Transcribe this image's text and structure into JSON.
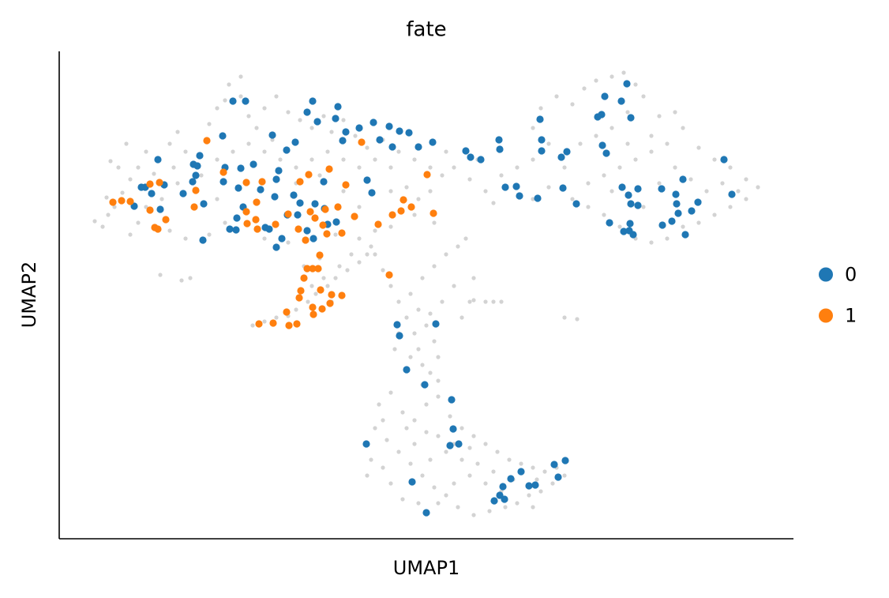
{
  "chart_data": {
    "type": "scatter",
    "title": "fate",
    "x_label": "UMAP1",
    "y_label": "UMAP2",
    "xlim": [
      0,
      930
    ],
    "ylim": [
      0,
      617
    ],
    "grid": false,
    "legend": "right",
    "series": [
      {
        "color": "#d3d3d3",
        "x": [
          45,
          55,
          62,
          70,
          60,
          80,
          75,
          65,
          90,
          100,
          110,
          120,
          140,
          150,
          160,
          190,
          200,
          215,
          230,
          240,
          250,
          260,
          275,
          290,
          305,
          320,
          335,
          345,
          360,
          375,
          390,
          410,
          430,
          450,
          470,
          485,
          470,
          455,
          440,
          420,
          400,
          380,
          360,
          340,
          320,
          300,
          280,
          260,
          240,
          220,
          200,
          180,
          150,
          130,
          100,
          90,
          140,
          160,
          190,
          210,
          260,
          290,
          350,
          380,
          400,
          420,
          450,
          475,
          145,
          200,
          300,
          360,
          420,
          490,
          230,
          210,
          270,
          330,
          380,
          110,
          85,
          500,
          520,
          540,
          560,
          580,
          600,
          620,
          600,
          610,
          630,
          650,
          665,
          680,
          700,
          715,
          730,
          740,
          720,
          700,
          680,
          660,
          640,
          620,
          600,
          650,
          670,
          690,
          710,
          730,
          750,
          770,
          790,
          810,
          830,
          850,
          870,
          885,
          870,
          850,
          830,
          810,
          790,
          770,
          750,
          730,
          710,
          690,
          670,
          700,
          740,
          760,
          780,
          800,
          820,
          840,
          860,
          750,
          720,
          760,
          780,
          550,
          530,
          245,
          260,
          275,
          290,
          300,
          315,
          325,
          340,
          350,
          365,
          380,
          390,
          395,
          370,
          355,
          335,
          320,
          310,
          330,
          345,
          400,
          410,
          420,
          430,
          440,
          450,
          455,
          460,
          470,
          480,
          475,
          465,
          455,
          445,
          460,
          475,
          490,
          505,
          515,
          500,
          485,
          470,
          430,
          425,
          445,
          480,
          460,
          520,
          510,
          540,
          560,
          525,
          405,
          420,
          435,
          450,
          465,
          480,
          495,
          510,
          525,
          540,
          555,
          570,
          585,
          600,
          615,
          630,
          640,
          625,
          610,
          595,
          580,
          565,
          545,
          525,
          505,
          490,
          475,
          460,
          445,
          430,
          415,
          400,
          390,
          395,
          410,
          420,
          435,
          455,
          480,
          500,
          520,
          540,
          560,
          470,
          490,
          510,
          530,
          550,
          450,
          465,
          480,
          500,
          520,
          440,
          410,
          390,
          575,
          605,
          600,
          640,
          656,
          550,
          525,
          128,
          166,
          155
        ],
        "values": [
          402,
          395,
          410,
          420,
          432,
          438,
          470,
          478,
          455,
          470,
          490,
          462,
          500,
          515,
          490,
          525,
          545,
          575,
          560,
          535,
          520,
          545,
          560,
          540,
          530,
          520,
          535,
          515,
          530,
          510,
          495,
          505,
          490,
          480,
          470,
          460,
          440,
          430,
          445,
          470,
          480,
          470,
          480,
          490,
          480,
          470,
          480,
          490,
          500,
          490,
          480,
          460,
          450,
          430,
          400,
          385,
          390,
          380,
          385,
          400,
          380,
          375,
          385,
          380,
          390,
          395,
          410,
          400,
          470,
          430,
          450,
          440,
          440,
          490,
          585,
          555,
          505,
          460,
          420,
          420,
          500,
          470,
          455,
          440,
          460,
          470,
          480,
          500,
          520,
          545,
          560,
          550,
          570,
          580,
          585,
          590,
          575,
          560,
          540,
          520,
          510,
          500,
          470,
          445,
          430,
          430,
          450,
          460,
          470,
          480,
          490,
          500,
          520,
          495,
          480,
          470,
          455,
          445,
          430,
          420,
          410,
          400,
          395,
          380,
          375,
          380,
          395,
          410,
          420,
          440,
          420,
          450,
          470,
          455,
          440,
          450,
          440,
          510,
          500,
          535,
          540,
          425,
          480,
          270,
          275,
          280,
          282,
          290,
          300,
          310,
          320,
          330,
          340,
          350,
          360,
          370,
          360,
          345,
          330,
          320,
          345,
          355,
          300,
          360,
          340,
          320,
          300,
          280,
          260,
          240,
          220,
          210,
          230,
          250,
          270,
          290,
          310,
          330,
          345,
          360,
          370,
          380,
          320,
          300,
          285,
          260,
          240,
          230,
          200,
          195,
          300,
          280,
          300,
          300,
          330,
          170,
          185,
          160,
          150,
          170,
          180,
          155,
          140,
          130,
          120,
          110,
          100,
          95,
          90,
          85,
          90,
          80,
          70,
          60,
          55,
          45,
          40,
          35,
          30,
          40,
          55,
          65,
          80,
          95,
          110,
          125,
          140,
          120,
          100,
          90,
          70,
          50,
          45,
          45,
          70,
          80,
          70,
          60,
          100,
          110,
          100,
          95,
          85,
          120,
          135,
          130,
          120,
          115,
          140,
          150,
          80,
          75,
          75,
          40,
          280,
          278,
          300,
          302,
          334,
          330,
          327
        ]
      },
      {
        "name": "0",
        "color": "#1f77b4",
        "x": [
          220,
          236,
          321,
          353,
          314,
          327,
          350,
          380,
          398,
          363,
          418,
          431,
          443,
          207,
          270,
          299,
          288,
          359,
          406,
          422,
          473,
          455,
          515,
          521,
          534,
          557,
          558,
          609,
          611,
          611,
          643,
          636,
          687,
          682,
          691,
          712,
          719,
          724,
          688,
          693,
          842,
          125,
          133,
          104,
          109,
          117,
          95,
          128,
          170,
          175,
          178,
          169,
          173,
          157,
          210,
          230,
          246,
          208,
          227,
          255,
          278,
          275,
          273,
          297,
          335,
          305,
          324,
          336,
          351,
          289,
          302,
          233,
          225,
          216,
          224,
          261,
          266,
          282,
          275,
          322,
          314,
          340,
          183,
          182,
          390,
          396,
          565,
          579,
          583,
          606,
          638,
          655,
          713,
          721,
          733,
          724,
          733,
          763,
          790,
          781,
          782,
          784,
          809,
          801,
          852,
          697,
          723,
          722,
          727,
          715,
          764,
          776,
          793,
          428,
          431,
          477,
          440,
          463,
          497,
          499,
          495,
          506,
          389,
          447,
          465,
          562,
          572,
          585,
          595,
          603,
          632,
          627,
          641,
          551,
          558,
          564
        ],
        "values": [
          554,
          554,
          554,
          547,
          540,
          528,
          532,
          520,
          527,
          515,
          522,
          516,
          514,
          510,
          511,
          502,
          492,
          504,
          505,
          496,
          502,
          496,
          491,
          483,
          480,
          505,
          493,
          531,
          505,
          491,
          490,
          483,
          537,
          534,
          560,
          554,
          576,
          533,
          498,
          488,
          480,
          480,
          448,
          445,
          445,
          437,
          421,
          417,
          474,
          472,
          485,
          452,
          460,
          437,
          470,
          469,
          474,
          452,
          444,
          442,
          466,
          455,
          433,
          435,
          452,
          425,
          424,
          418,
          401,
          410,
          410,
          420,
          406,
          392,
          391,
          394,
          392,
          380,
          369,
          380,
          390,
          398,
          424,
          378,
          454,
          438,
          445,
          446,
          434,
          431,
          444,
          424,
          445,
          435,
          443,
          424,
          422,
          443,
          455,
          436,
          424,
          412,
          426,
          415,
          436,
          400,
          399,
          390,
          385,
          389,
          397,
          402,
          385,
          271,
          257,
          272,
          214,
          195,
          176,
          139,
          118,
          120,
          120,
          72,
          33,
          66,
          76,
          85,
          67,
          68,
          78,
          94,
          99,
          48,
          55,
          50
        ]
      },
      {
        "name": "1",
        "color": "#ff7f0e",
        "x": [
          187,
          208,
          115,
          127,
          68,
          79,
          90,
          115,
          135,
          121,
          125,
          173,
          171,
          237,
          257,
          250,
          237,
          249,
          238,
          274,
          251,
          316,
          305,
          342,
          363,
          353,
          337,
          290,
          318,
          324,
          374,
          334,
          303,
          312,
          339,
          358,
          383,
          466,
          436,
          446,
          433,
          422,
          474,
          404,
          330,
          314,
          321,
          328,
          310,
          306,
          304,
          331,
          345,
          358,
          343,
          288,
          321,
          333,
          322,
          271,
          253,
          291,
          301,
          418
        ],
        "values": [
          504,
          464,
          449,
          451,
          426,
          428,
          427,
          416,
          404,
          394,
          392,
          441,
          420,
          451,
          452,
          426,
          414,
          404,
          399,
          398,
          392,
          461,
          452,
          468,
          448,
          420,
          417,
          411,
          414,
          406,
          408,
          397,
          392,
          378,
          386,
          387,
          502,
          461,
          429,
          420,
          415,
          410,
          412,
          398,
          359,
          342,
          342,
          342,
          330,
          314,
          305,
          315,
          309,
          308,
          298,
          287,
          293,
          291,
          284,
          273,
          272,
          270,
          272,
          334
        ]
      }
    ]
  }
}
